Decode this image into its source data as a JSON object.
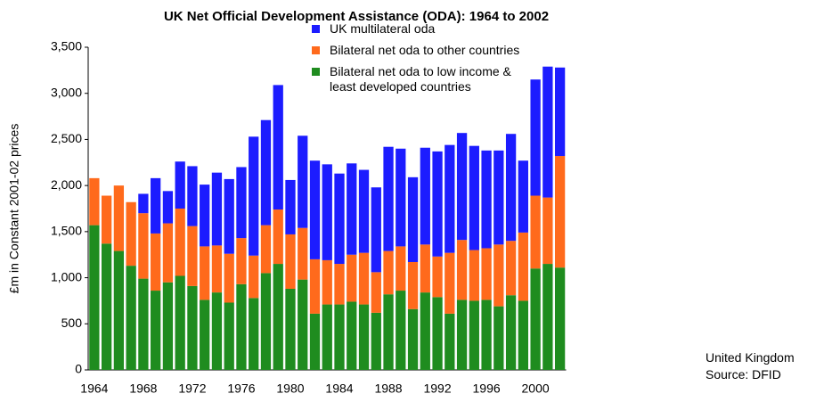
{
  "chart_data": {
    "type": "stacked_bar",
    "title": "UK Net Official Development Assistance (ODA): 1964 to 2002",
    "y_label": "£m in Constant 2001-02 prices",
    "notes": [
      "United Kingdom",
      "Source: DFID"
    ],
    "categories": [
      "1964",
      null,
      null,
      null,
      "1968",
      null,
      null,
      null,
      "1972",
      null,
      null,
      null,
      "1976",
      null,
      null,
      null,
      "1980",
      null,
      null,
      null,
      "1984",
      null,
      null,
      null,
      "1988",
      null,
      null,
      null,
      "1992",
      null,
      null,
      null,
      "1996",
      null,
      null,
      null,
      "2000",
      null,
      null
    ],
    "series": [
      {
        "name": "Bilateral net oda to low income & least developed countries",
        "color": "#1f8c1f",
        "values": [
          1570,
          1370,
          1290,
          1130,
          990,
          860,
          950,
          1020,
          910,
          760,
          840,
          730,
          930,
          780,
          1050,
          1150,
          880,
          980,
          610,
          710,
          710,
          740,
          710,
          620,
          820,
          860,
          660,
          840,
          790,
          610,
          760,
          750,
          760,
          690,
          810,
          750,
          1100,
          1150,
          1110
        ]
      },
      {
        "name": "Bilateral net oda to other countries",
        "color": "#ff6a1c",
        "values": [
          510,
          520,
          710,
          690,
          710,
          620,
          640,
          730,
          650,
          580,
          510,
          530,
          500,
          460,
          520,
          590,
          590,
          560,
          590,
          480,
          440,
          510,
          560,
          440,
          470,
          480,
          510,
          520,
          440,
          660,
          650,
          550,
          560,
          670,
          590,
          740,
          790,
          720,
          1210
        ]
      },
      {
        "name": "UK multilateral oda",
        "color": "#1c1cff",
        "values": [
          0,
          0,
          0,
          0,
          210,
          600,
          350,
          510,
          650,
          670,
          790,
          810,
          770,
          1290,
          1140,
          1350,
          590,
          1000,
          1070,
          1040,
          980,
          990,
          900,
          920,
          1130,
          1060,
          920,
          1050,
          1140,
          1170,
          1160,
          1130,
          1060,
          1020,
          1160,
          780,
          1260,
          1420,
          960
        ]
      }
    ],
    "ylim": [
      0,
      3500
    ],
    "yticks": [
      0,
      500,
      {
        "value": 1000,
        "label": "1,000"
      },
      {
        "value": 1500,
        "label": "1,500"
      },
      {
        "value": 2000,
        "label": "2,000"
      },
      {
        "value": 2500,
        "label": "2,500"
      },
      {
        "value": 3000,
        "label": "3,000"
      },
      {
        "value": 3500,
        "label": "3,500"
      }
    ],
    "grid": false
  }
}
